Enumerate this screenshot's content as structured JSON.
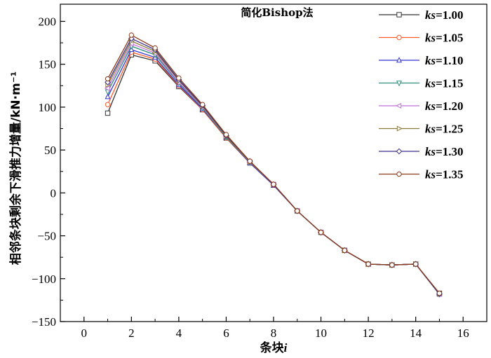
{
  "chart_data": {
    "type": "line",
    "title": "简化Bishop法",
    "xlabel_main": "条块",
    "xlabel_var": "i",
    "ylabel": "相邻条块剩余下滑推力增量/kN·m⁻¹",
    "xlim": [
      -1,
      17
    ],
    "ylim": [
      -150,
      220
    ],
    "xticks": [
      0,
      2,
      4,
      6,
      8,
      10,
      12,
      14,
      16
    ],
    "yticks": [
      -150,
      -100,
      -50,
      0,
      50,
      100,
      150,
      200
    ],
    "x": [
      1,
      2,
      3,
      4,
      5,
      6,
      7,
      8,
      9,
      10,
      11,
      12,
      13,
      14,
      15
    ],
    "legend_position": "top-right",
    "series": [
      {
        "name": "ks=1.00",
        "prefix": "ks",
        "suffix": "=1.00",
        "color": "#333333",
        "marker": "square",
        "values": [
          93,
          161,
          154,
          124,
          97,
          64,
          35,
          9,
          -21,
          -46,
          -67,
          -83,
          -84,
          -83,
          -117
        ]
      },
      {
        "name": "ks=1.05",
        "prefix": "ks",
        "suffix": "=1.05",
        "color": "#ff5a2a",
        "marker": "circle",
        "values": [
          103,
          164,
          156,
          125,
          97,
          64,
          35,
          9,
          -21,
          -46,
          -67,
          -83,
          -84,
          -83,
          -118
        ]
      },
      {
        "name": "ks=1.10",
        "prefix": "ks",
        "suffix": "=1.10",
        "color": "#3333cc",
        "marker": "triangle-up",
        "values": [
          112,
          167,
          158,
          126,
          98,
          65,
          35,
          9,
          -21,
          -46,
          -67,
          -83,
          -84,
          -83,
          -118
        ]
      },
      {
        "name": "ks=1.15",
        "prefix": "ks",
        "suffix": "=1.15",
        "color": "#2e8b7a",
        "marker": "triangle-down",
        "values": [
          118,
          171,
          161,
          128,
          99,
          65,
          36,
          10,
          -21,
          -46,
          -67,
          -83,
          -84,
          -83,
          -118
        ]
      },
      {
        "name": "ks=1.20",
        "prefix": "ks",
        "suffix": "=1.20",
        "color": "#c070d8",
        "marker": "triangle-left",
        "values": [
          122,
          174,
          163,
          129,
          100,
          66,
          36,
          10,
          -21,
          -46,
          -67,
          -83,
          -84,
          -83,
          -118
        ]
      },
      {
        "name": "ks=1.25",
        "prefix": "ks",
        "suffix": "=1.25",
        "color": "#8a7a3a",
        "marker": "triangle-right",
        "values": [
          126,
          177,
          165,
          131,
          101,
          66,
          36,
          10,
          -21,
          -46,
          -67,
          -83,
          -84,
          -83,
          -118
        ]
      },
      {
        "name": "ks=1.30",
        "prefix": "ks",
        "suffix": "=1.30",
        "color": "#3a2f8a",
        "marker": "diamond",
        "values": [
          129,
          180,
          167,
          132,
          102,
          67,
          37,
          10,
          -21,
          -46,
          -67,
          -83,
          -84,
          -83,
          -118
        ]
      },
      {
        "name": "ks=1.35",
        "prefix": "ks",
        "suffix": "=1.35",
        "color": "#8b3a1a",
        "marker": "circle",
        "values": [
          133,
          184,
          169,
          134,
          103,
          68,
          37,
          10,
          -21,
          -46,
          -67,
          -83,
          -84,
          -83,
          -117
        ]
      }
    ]
  }
}
